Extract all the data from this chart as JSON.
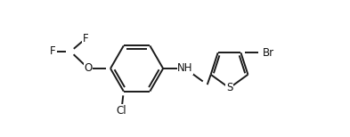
{
  "bg_color": "#ffffff",
  "bond_color": "#1a1a1a",
  "line_width": 1.4,
  "font_size": 8.5,
  "figsize": [
    3.93,
    1.54
  ],
  "dpi": 100,
  "xlim": [
    0.0,
    7.8
  ],
  "ylim": [
    -1.6,
    1.6
  ]
}
